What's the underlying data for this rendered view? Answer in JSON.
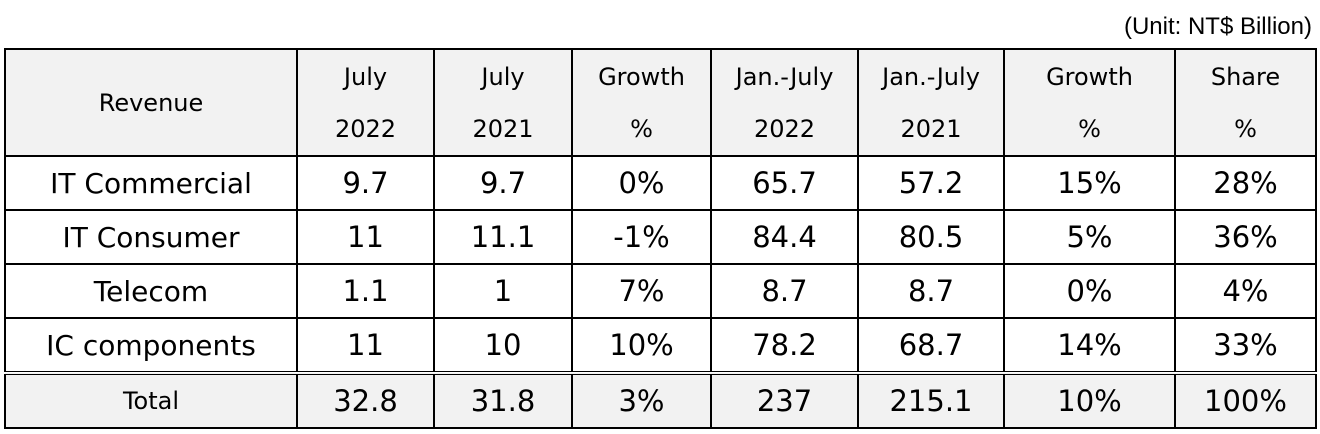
{
  "unit_note": "(Unit: NT$ Billion)",
  "header": {
    "label": "Revenue",
    "columns": [
      {
        "line1": "July",
        "line2": "2022"
      },
      {
        "line1": "July",
        "line2": "2021"
      },
      {
        "line1": "Growth",
        "line2": "%"
      },
      {
        "line1": "Jan.-July",
        "line2": "2022"
      },
      {
        "line1": "Jan.-July",
        "line2": "2021"
      },
      {
        "line1": "Growth",
        "line2": "%"
      },
      {
        "line1": "Share",
        "line2": "%"
      }
    ]
  },
  "rows": [
    {
      "label": "IT Commercial",
      "cells": [
        "9.7",
        "9.7",
        "0%",
        "65.7",
        "57.2",
        "15%",
        "28%"
      ]
    },
    {
      "label": "IT Consumer",
      "cells": [
        "11",
        "11.1",
        "-1%",
        "84.4",
        "80.5",
        "5%",
        "36%"
      ]
    },
    {
      "label": "Telecom",
      "cells": [
        "1.1",
        "1",
        "7%",
        "8.7",
        "8.7",
        "0%",
        "4%"
      ]
    },
    {
      "label": "IC components",
      "cells": [
        "11",
        "10",
        "10%",
        "78.2",
        "68.7",
        "14%",
        "33%"
      ]
    }
  ],
  "total": {
    "label": "Total",
    "cells": [
      "32.8",
      "31.8",
      "3%",
      "237",
      "215.1",
      "10%",
      "100%"
    ]
  }
}
